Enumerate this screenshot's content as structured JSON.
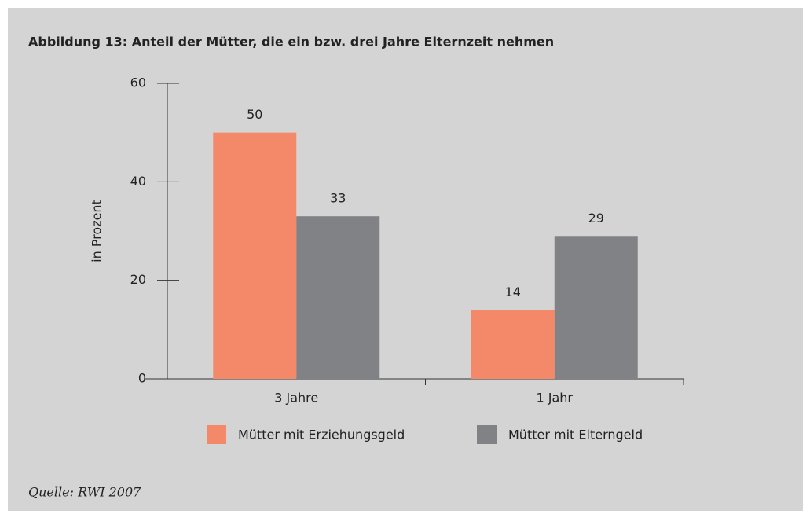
{
  "chart_data": {
    "type": "bar",
    "title": "Abbildung 13: Anteil der Mütter, die ein bzw. drei Jahre Elternzeit nehmen",
    "ylabel": "in Prozent",
    "categories": [
      "3 Jahre",
      "1 Jahr"
    ],
    "series": [
      {
        "name": "Mütter mit Erziehungsgeld",
        "color": "#f4896a",
        "values": [
          50,
          14
        ]
      },
      {
        "name": "Mütter mit Elterngeld",
        "color": "#818285",
        "values": [
          33,
          29
        ]
      }
    ],
    "ylim": [
      0,
      60
    ],
    "yticks": [
      0,
      20,
      40,
      60
    ],
    "source": "Quelle: RWI 2007"
  }
}
